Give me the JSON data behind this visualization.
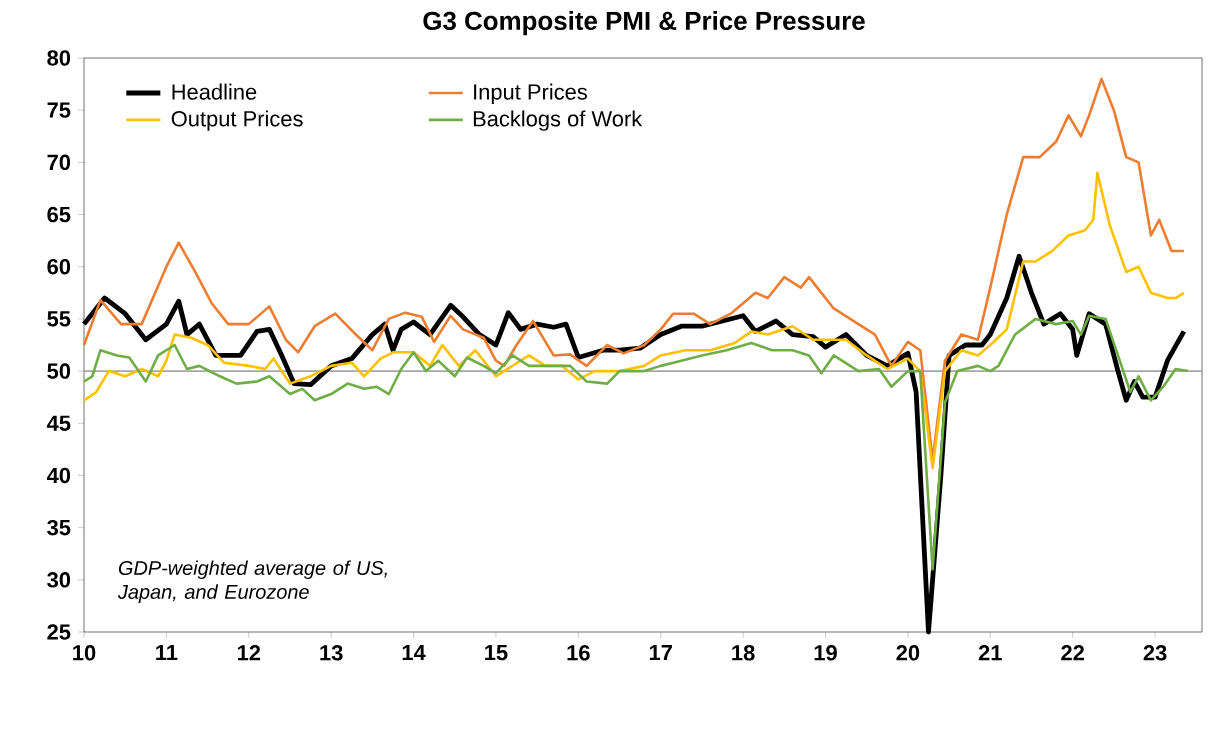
{
  "chart_data": {
    "type": "line",
    "title": "G3 Composite PMI & Price Pressure",
    "annotations": [
      "GDP-weighted average of US, Japan, and Eurozone"
    ],
    "xlim": [
      2010,
      2023.57
    ],
    "ylim": [
      25,
      80
    ],
    "xticks": [
      {
        "value": 2010,
        "label": "10"
      },
      {
        "value": 2011,
        "label": "11"
      },
      {
        "value": 2012,
        "label": "12"
      },
      {
        "value": 2013,
        "label": "13"
      },
      {
        "value": 2014,
        "label": "14"
      },
      {
        "value": 2015,
        "label": "15"
      },
      {
        "value": 2016,
        "label": "16"
      },
      {
        "value": 2017,
        "label": "17"
      },
      {
        "value": 2018,
        "label": "18"
      },
      {
        "value": 2019,
        "label": "19"
      },
      {
        "value": 2020,
        "label": "20"
      },
      {
        "value": 2021,
        "label": "21"
      },
      {
        "value": 2022,
        "label": "22"
      },
      {
        "value": 2023,
        "label": "23"
      }
    ],
    "yticks": [
      25,
      30,
      35,
      40,
      45,
      50,
      55,
      60,
      65,
      70,
      75,
      80
    ],
    "ref_lines": [
      {
        "axis": "y",
        "value": 50,
        "color": "#a6a6a6"
      }
    ],
    "legend": "top left",
    "grid": false,
    "marker": "none",
    "series": [
      {
        "name": "Headline",
        "color": "#000000",
        "x": [
          2010.0,
          2010.25,
          2010.5,
          2010.75,
          2011.0,
          2011.15,
          2011.25,
          2011.4,
          2011.6,
          2011.9,
          2012.1,
          2012.25,
          2012.4,
          2012.55,
          2012.75,
          2013.0,
          2013.25,
          2013.5,
          2013.65,
          2013.75,
          2013.85,
          2014.0,
          2014.2,
          2014.45,
          2014.6,
          2014.8,
          2015.0,
          2015.15,
          2015.3,
          2015.5,
          2015.7,
          2015.85,
          2016.0,
          2016.3,
          2016.5,
          2016.75,
          2017.0,
          2017.25,
          2017.5,
          2017.75,
          2018.0,
          2018.15,
          2018.4,
          2018.6,
          2018.85,
          2019.0,
          2019.25,
          2019.5,
          2019.75,
          2020.0,
          2020.1,
          2020.25,
          2020.4,
          2020.5,
          2020.7,
          2020.9,
          2021.0,
          2021.2,
          2021.35,
          2021.5,
          2021.65,
          2021.85,
          2022.0,
          2022.05,
          2022.2,
          2022.4,
          2022.55,
          2022.65,
          2022.75,
          2022.85,
          2023.0,
          2023.15,
          2023.35
        ],
        "values": [
          54.5,
          57,
          55.5,
          53,
          54.5,
          56.7,
          53.5,
          54.5,
          51.5,
          51.5,
          53.8,
          54,
          51.5,
          48.8,
          48.7,
          50.5,
          51.2,
          53.5,
          54.5,
          52,
          54,
          54.7,
          53.5,
          56.3,
          55.2,
          53.5,
          52.5,
          55.6,
          54,
          54.5,
          54.2,
          54.5,
          51.3,
          52,
          52,
          52.2,
          53.5,
          54.3,
          54.3,
          54.8,
          55.3,
          53.8,
          54.8,
          53.5,
          53.3,
          52.3,
          53.5,
          51.5,
          50.5,
          51.7,
          48,
          25,
          40,
          51.5,
          52.5,
          52.5,
          53.5,
          57,
          61,
          57.5,
          54.5,
          55.5,
          54,
          51.5,
          55.5,
          54.5,
          50,
          47.2,
          49,
          47.5,
          47.5,
          51,
          53.8
        ]
      },
      {
        "name": "Input Prices",
        "color": "#ed7d31",
        "x": [
          2010.0,
          2010.2,
          2010.45,
          2010.7,
          2011.0,
          2011.15,
          2011.35,
          2011.55,
          2011.75,
          2012.0,
          2012.25,
          2012.45,
          2012.6,
          2012.8,
          2013.05,
          2013.3,
          2013.5,
          2013.7,
          2013.9,
          2014.1,
          2014.25,
          2014.45,
          2014.6,
          2014.85,
          2015.0,
          2015.1,
          2015.25,
          2015.45,
          2015.7,
          2015.9,
          2016.1,
          2016.35,
          2016.55,
          2016.8,
          2017.0,
          2017.15,
          2017.4,
          2017.6,
          2017.85,
          2018.0,
          2018.15,
          2018.3,
          2018.5,
          2018.7,
          2018.8,
          2018.9,
          2019.1,
          2019.3,
          2019.6,
          2019.8,
          2020.0,
          2020.15,
          2020.3,
          2020.45,
          2020.65,
          2020.85,
          2021.0,
          2021.2,
          2021.4,
          2021.6,
          2021.8,
          2021.95,
          2022.1,
          2022.2,
          2022.35,
          2022.5,
          2022.65,
          2022.8,
          2022.95,
          2023.05,
          2023.2,
          2023.35
        ],
        "values": [
          52.5,
          56.8,
          54.5,
          54.5,
          60,
          62.3,
          59.5,
          56.5,
          54.5,
          54.5,
          56.2,
          53,
          51.8,
          54.3,
          55.5,
          53.5,
          52,
          55,
          55.6,
          55.2,
          52.8,
          55.3,
          54,
          53.2,
          51,
          50.5,
          52.5,
          54.8,
          51.5,
          51.6,
          50.5,
          52.5,
          51.7,
          52.5,
          54,
          55.5,
          55.5,
          54.5,
          55.5,
          56.5,
          57.5,
          57,
          59,
          58,
          59,
          58,
          56,
          55,
          53.5,
          50.5,
          52.8,
          52,
          41.5,
          51,
          53.5,
          53,
          58,
          65,
          70.5,
          70.5,
          72,
          74.5,
          72.5,
          74.5,
          78,
          75,
          70.5,
          70,
          63,
          64.5,
          61.5,
          61.5
        ]
      },
      {
        "name": "Output Prices",
        "color": "#ffc000",
        "x": [
          2010.0,
          2010.15,
          2010.3,
          2010.5,
          2010.7,
          2010.9,
          2011.0,
          2011.1,
          2011.3,
          2011.5,
          2011.7,
          2012.0,
          2012.2,
          2012.3,
          2012.5,
          2012.75,
          2013.0,
          2013.25,
          2013.4,
          2013.6,
          2013.75,
          2014.0,
          2014.2,
          2014.35,
          2014.55,
          2014.75,
          2015.0,
          2015.2,
          2015.4,
          2015.6,
          2015.8,
          2016.0,
          2016.2,
          2016.5,
          2016.8,
          2017.0,
          2017.3,
          2017.6,
          2017.9,
          2018.1,
          2018.3,
          2018.6,
          2018.85,
          2019.0,
          2019.25,
          2019.5,
          2019.75,
          2020.0,
          2020.15,
          2020.3,
          2020.45,
          2020.65,
          2020.85,
          2021.0,
          2021.2,
          2021.4,
          2021.55,
          2021.75,
          2021.95,
          2022.15,
          2022.25,
          2022.3,
          2022.45,
          2022.65,
          2022.8,
          2022.95,
          2023.15,
          2023.25,
          2023.35
        ],
        "values": [
          47.2,
          48,
          50,
          49.5,
          50.2,
          49.5,
          51,
          53.5,
          53.2,
          52.5,
          50.8,
          50.5,
          50.2,
          51.2,
          48.8,
          49.5,
          50.5,
          50.8,
          49.5,
          51.2,
          51.8,
          51.8,
          50.5,
          52.5,
          50.5,
          52,
          49.5,
          50.5,
          51.5,
          50.5,
          50.5,
          49.2,
          50,
          50,
          50.5,
          51.5,
          52,
          52,
          52.7,
          53.8,
          53.5,
          54.3,
          53,
          53,
          53,
          51.5,
          50.2,
          51.2,
          50,
          40.7,
          50,
          52,
          51.5,
          52.5,
          54,
          60.5,
          60.5,
          61.5,
          63,
          63.5,
          64.5,
          69,
          64,
          59.5,
          60,
          57.5,
          57,
          57,
          57.5
        ]
      },
      {
        "name": "Backlogs of Work",
        "color": "#70ad47",
        "x": [
          2010.0,
          2010.1,
          2010.2,
          2010.4,
          2010.55,
          2010.75,
          2010.9,
          2011.1,
          2011.25,
          2011.4,
          2011.65,
          2011.85,
          2012.1,
          2012.25,
          2012.5,
          2012.65,
          2012.8,
          2013.0,
          2013.2,
          2013.4,
          2013.55,
          2013.7,
          2013.85,
          2014.0,
          2014.15,
          2014.3,
          2014.5,
          2014.65,
          2014.85,
          2015.0,
          2015.2,
          2015.4,
          2015.65,
          2015.9,
          2016.1,
          2016.35,
          2016.5,
          2016.8,
          2017.0,
          2017.25,
          2017.5,
          2017.8,
          2018.1,
          2018.35,
          2018.6,
          2018.8,
          2018.95,
          2019.1,
          2019.4,
          2019.65,
          2019.8,
          2020.0,
          2020.15,
          2020.3,
          2020.45,
          2020.6,
          2020.85,
          2021.0,
          2021.1,
          2021.3,
          2021.55,
          2021.8,
          2022.0,
          2022.1,
          2022.2,
          2022.4,
          2022.55,
          2022.7,
          2022.8,
          2022.95,
          2023.1,
          2023.25,
          2023.4
        ],
        "values": [
          49,
          49.5,
          52,
          51.5,
          51.3,
          49,
          51.5,
          52.5,
          50.2,
          50.5,
          49.5,
          48.8,
          49,
          49.5,
          47.8,
          48.3,
          47.2,
          47.8,
          48.8,
          48.3,
          48.5,
          47.8,
          50.2,
          51.8,
          50,
          51,
          49.5,
          51.3,
          50.5,
          49.8,
          51.5,
          50.5,
          50.5,
          50.5,
          49,
          48.8,
          50,
          50,
          50.5,
          51,
          51.5,
          52,
          52.7,
          52,
          52,
          51.5,
          49.8,
          51.5,
          50,
          50.2,
          48.5,
          50,
          50,
          31,
          47,
          50,
          50.5,
          50,
          50.5,
          53.5,
          55,
          54.5,
          54.8,
          53.5,
          55.3,
          55,
          51.5,
          48,
          49.5,
          47.2,
          48.5,
          50.2,
          50
        ]
      }
    ]
  }
}
